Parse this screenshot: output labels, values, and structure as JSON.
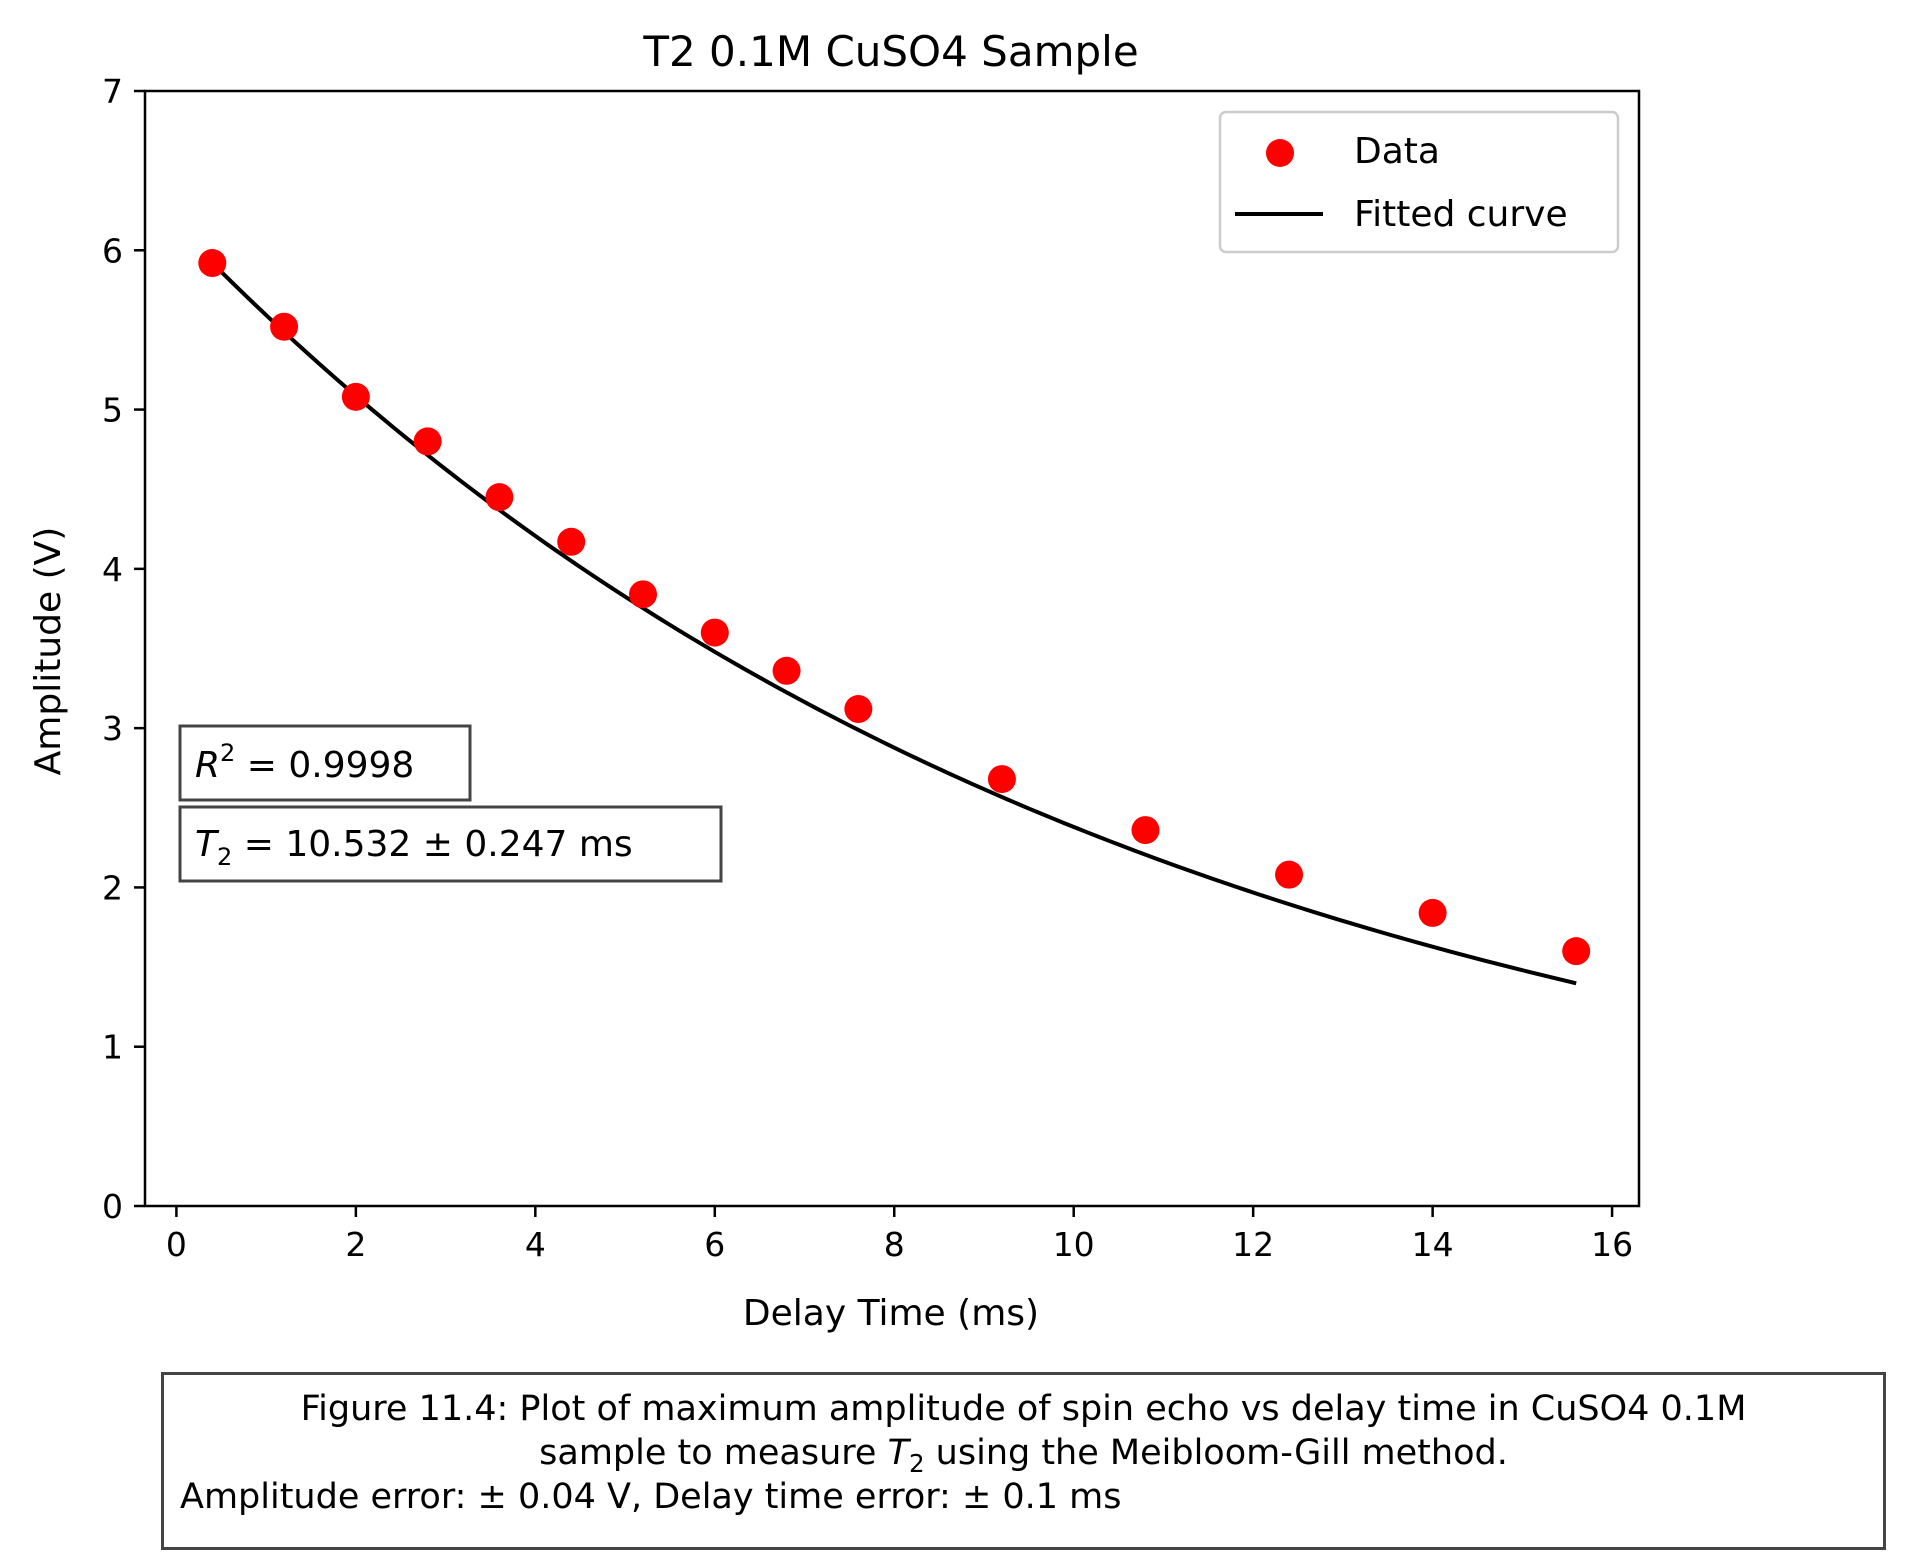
{
  "chart_data": {
    "type": "scatter",
    "title": "T2 0.1M CuSO4 Sample",
    "xlabel": "Delay Time (ms)",
    "ylabel": "Amplitude (V)",
    "xlim": [
      -0.35,
      16.3
    ],
    "ylim": [
      0,
      7
    ],
    "xticks": [
      0,
      2,
      4,
      6,
      8,
      10,
      12,
      14,
      16
    ],
    "yticks": [
      0,
      1,
      2,
      3,
      4,
      5,
      6,
      7
    ],
    "grid": false,
    "legend": {
      "position": "top-right",
      "entries": [
        "Data",
        "Fitted curve"
      ]
    },
    "series": [
      {
        "name": "Data",
        "kind": "scatter",
        "color": "#ff0000",
        "x": [
          0.4,
          1.2,
          2.0,
          2.8,
          3.6,
          4.4,
          5.2,
          6.0,
          6.8,
          7.6,
          9.2,
          10.8,
          12.4,
          14.0,
          15.6
        ],
        "y": [
          5.92,
          5.52,
          5.08,
          4.8,
          4.45,
          4.17,
          3.84,
          3.6,
          3.36,
          3.12,
          2.68,
          2.36,
          2.08,
          1.84,
          1.6
        ]
      },
      {
        "name": "Fitted curve",
        "kind": "line",
        "color": "#000000",
        "x_range": [
          0.4,
          15.6
        ],
        "fit": {
          "A": 6.15,
          "T2": 10.532
        }
      }
    ],
    "annotations": {
      "r2_label": "R",
      "r2_sup": "2",
      "r2_value": " = 0.9998",
      "t2_label": "T",
      "t2_sub": "2",
      "t2_value": " = 10.532 ± 0.247 ms"
    }
  },
  "caption": {
    "line1": "Figure 11.4: Plot of maximum amplitude of spin echo vs delay time in CuSO4 0.1M",
    "line2_pre": "sample to measure ",
    "line2_var": "T",
    "line2_sub": "2",
    "line2_post": " using the Meibloom-Gill method.",
    "line3": "Amplitude error: ± 0.04 V, Delay time error: ± 0.1 ms"
  }
}
